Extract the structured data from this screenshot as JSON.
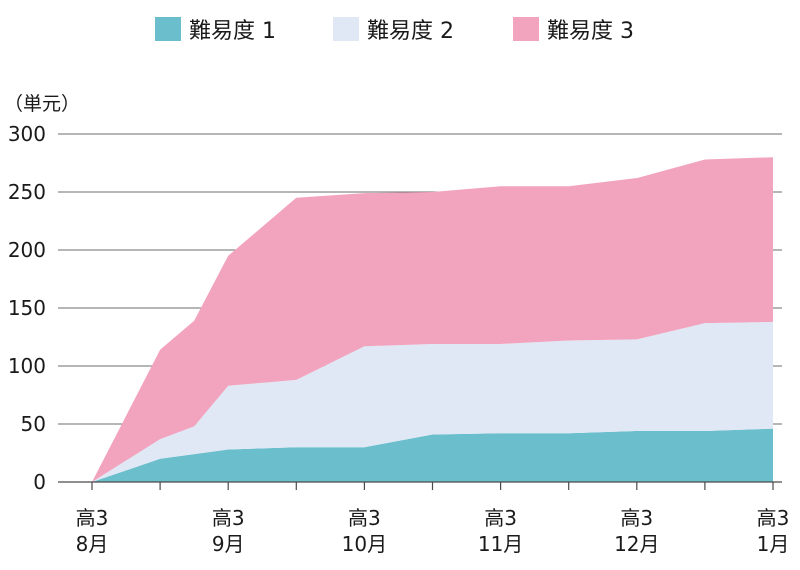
{
  "chart_data": {
    "type": "area",
    "stacked": true,
    "unit_label": "（単元）",
    "x_tick_labels": [
      [
        "高3",
        "8月"
      ],
      [
        "高3",
        "9月"
      ],
      [
        "高3",
        "10月"
      ],
      [
        "高3",
        "11月"
      ],
      [
        "高3",
        "12月"
      ],
      [
        "高3",
        "1月"
      ]
    ],
    "x": [
      0,
      0.5,
      0.75,
      1,
      1.5,
      2,
      2.5,
      3,
      3.5,
      4,
      4.5,
      5
    ],
    "series": [
      {
        "name": "難易度 1",
        "color": "#6bbfcc",
        "values": [
          0,
          20,
          24,
          28,
          30,
          30,
          41,
          42,
          42,
          44,
          44,
          46
        ]
      },
      {
        "name": "難易度 2",
        "color": "#e0e8f5",
        "values": [
          0,
          17,
          24,
          55,
          58,
          87,
          78,
          77,
          80,
          79,
          93,
          92
        ]
      },
      {
        "name": "難易度 3",
        "color": "#f2a3bd",
        "values": [
          0,
          77,
          91,
          112,
          157,
          132,
          131,
          136,
          133,
          139,
          141,
          142
        ]
      }
    ],
    "ylim": [
      0,
      300
    ],
    "yticks": [
      0,
      50,
      100,
      150,
      200,
      250,
      300
    ],
    "grid": true,
    "legend_position": "top"
  }
}
